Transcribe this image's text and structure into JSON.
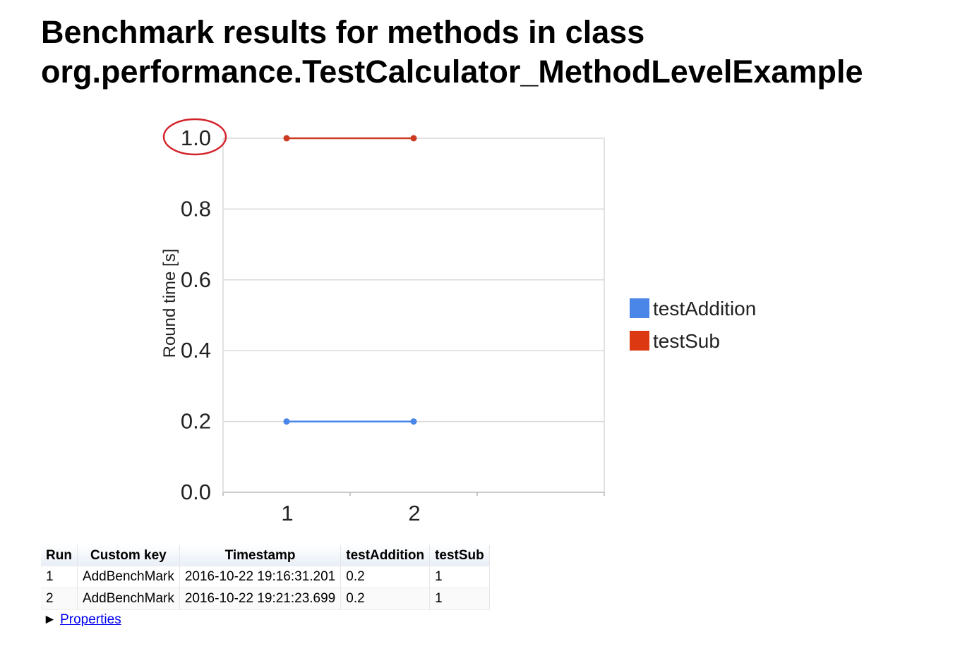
{
  "page": {
    "title_line1": "Benchmark results for methods in class",
    "title_line2": "org.performance.TestCalculator_MethodLevelExample"
  },
  "chart_data": {
    "type": "line",
    "x": [
      "1",
      "2"
    ],
    "series": [
      {
        "name": "testAddition",
        "values": [
          0.2,
          0.2
        ],
        "color": "#4a86e8"
      },
      {
        "name": "testSub",
        "values": [
          1.0,
          1.0
        ],
        "color": "#cc3a21"
      }
    ],
    "y_ticks": [
      "0.0",
      "0.2",
      "0.4",
      "0.6",
      "0.8",
      "1.0"
    ],
    "ylim": [
      0,
      1.0
    ],
    "ylabel": "Round time [s]",
    "xlabel": "",
    "legend_position": "right",
    "grid": true,
    "legend_swatch_colors": [
      "#4a86e8",
      "#dc3912"
    ],
    "annotation": {
      "type": "circle",
      "target_tick": "1.0",
      "color": "#d3222a"
    }
  },
  "table": {
    "headers": [
      "Run",
      "Custom key",
      "Timestamp",
      "testAddition",
      "testSub"
    ],
    "rows": [
      [
        "1",
        "AddBenchMark",
        "2016-10-22 19:16:31.201",
        "0.2",
        "1"
      ],
      [
        "2",
        "AddBenchMark",
        "2016-10-22 19:21:23.699",
        "0.2",
        "1"
      ]
    ]
  },
  "properties": {
    "arrow": "►",
    "link_label": "Properties"
  }
}
